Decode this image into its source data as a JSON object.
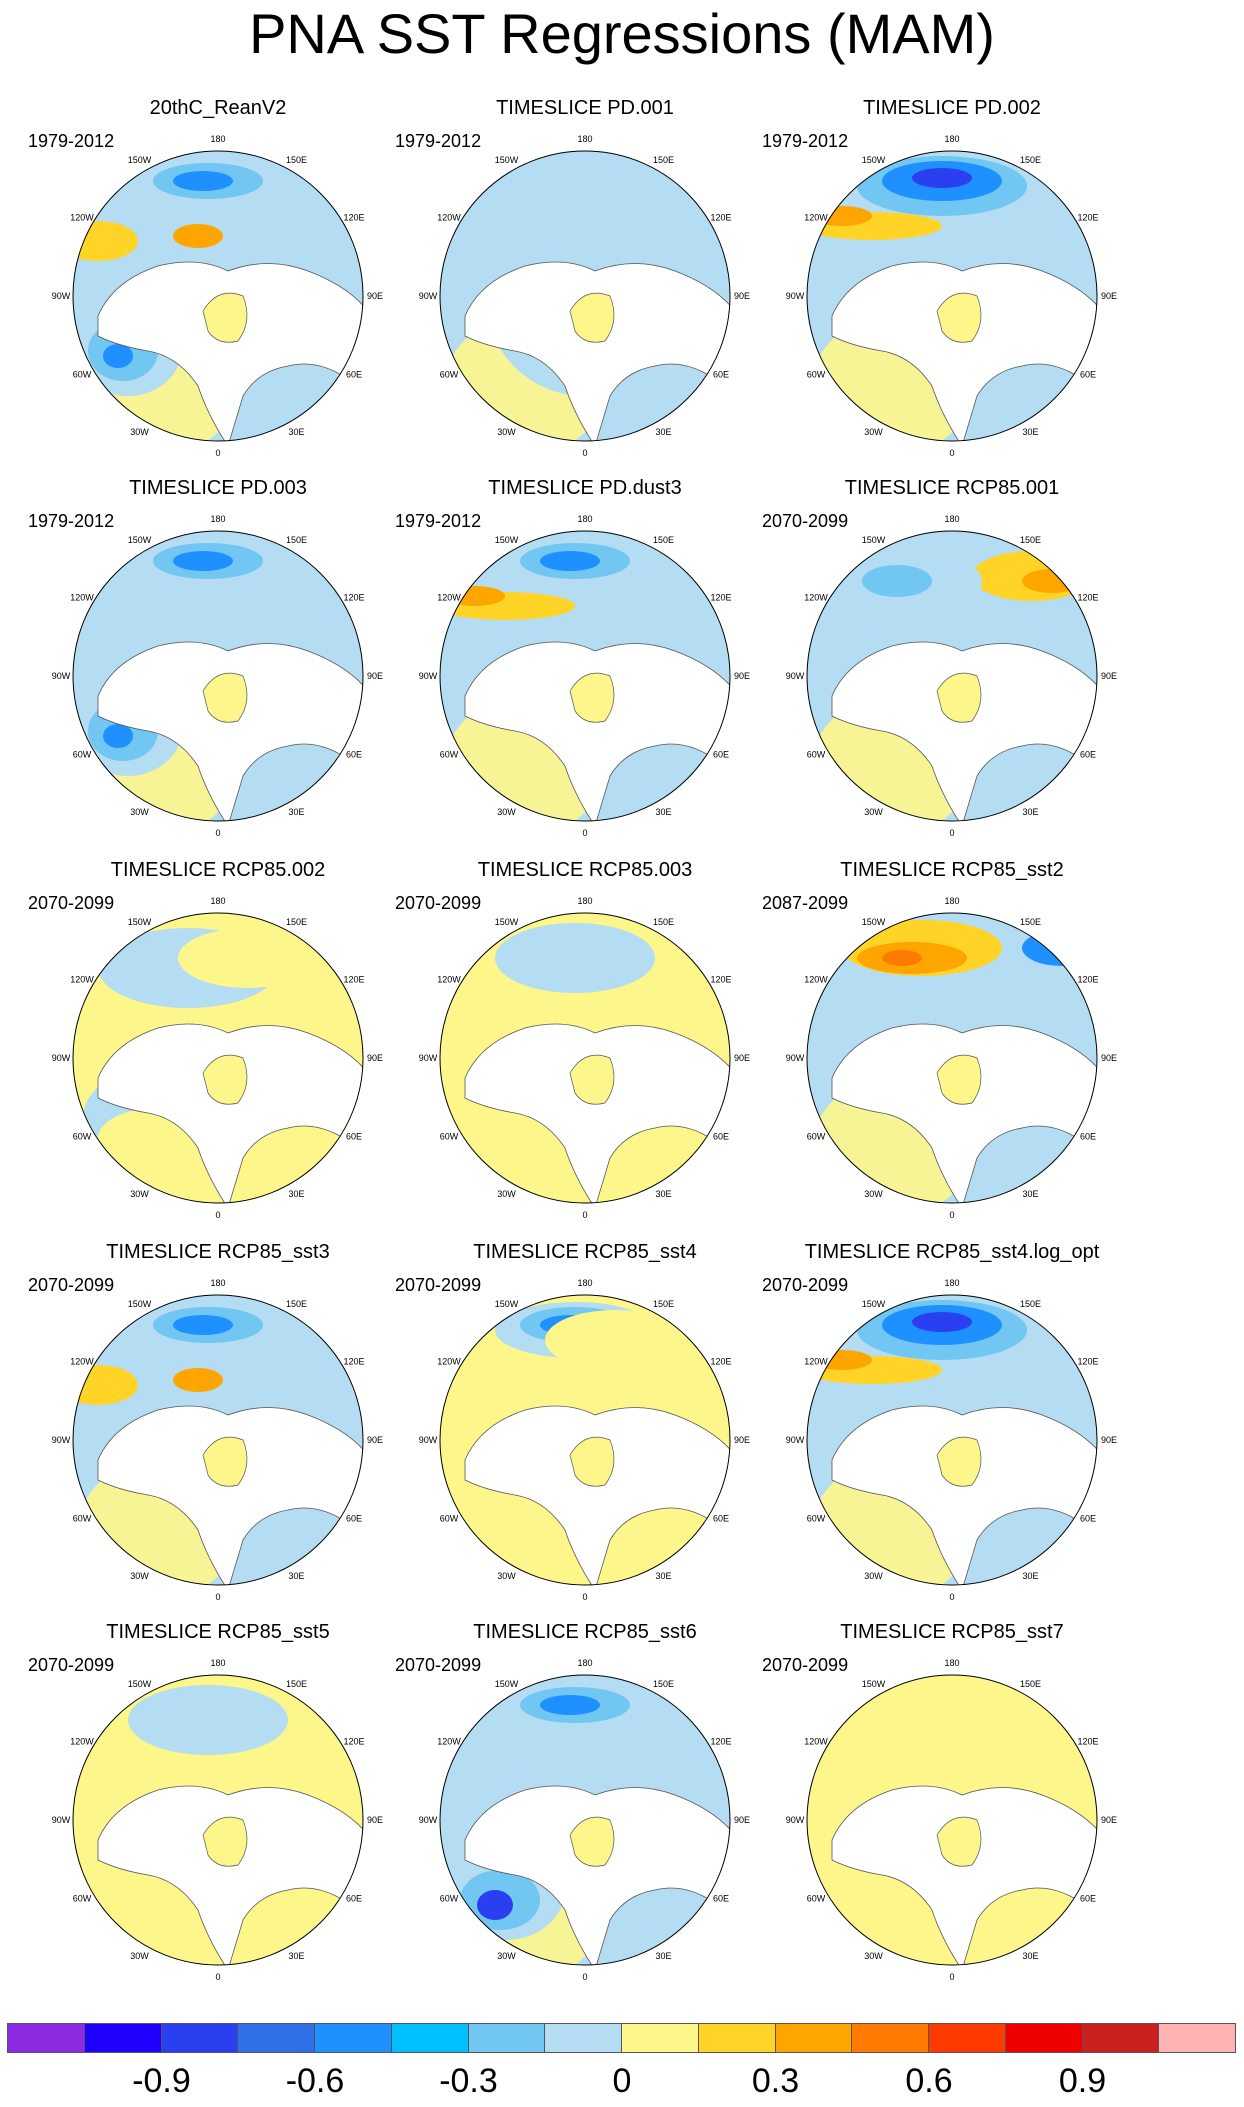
{
  "title": "PNA SST Regressions (MAM)",
  "longitude_labels": [
    "180",
    "150E",
    "120E",
    "90E",
    "60E",
    "30E",
    "0",
    "30W",
    "60W",
    "90W",
    "120W",
    "150W"
  ],
  "panels": [
    {
      "title": "20thC_ReanV2",
      "period": "1979-2012",
      "pattern": [
        "cool-pacific",
        "warm-west",
        "cool-atlantic"
      ]
    },
    {
      "title": "TIMESLICE PD.001",
      "period": "1979-2012",
      "pattern": [
        "cool-weak",
        "neutral"
      ]
    },
    {
      "title": "TIMESLICE PD.002",
      "period": "1979-2012",
      "pattern": [
        "cool-pacific-strong",
        "warm-band"
      ]
    },
    {
      "title": "TIMESLICE PD.003",
      "period": "1979-2012",
      "pattern": [
        "cool-pacific",
        "cool-atlantic"
      ]
    },
    {
      "title": "TIMESLICE PD.dust3",
      "period": "1979-2012",
      "pattern": [
        "cool-pacific",
        "warm-band"
      ]
    },
    {
      "title": "TIMESLICE RCP85.001",
      "period": "2070-2099",
      "pattern": [
        "warm-east",
        "cool-pacific-weak"
      ]
    },
    {
      "title": "TIMESLICE RCP85.002",
      "period": "2070-2099",
      "pattern": [
        "neutral-cool",
        "warm-weak"
      ]
    },
    {
      "title": "TIMESLICE RCP85.003",
      "period": "2070-2099",
      "pattern": [
        "warm-weak",
        "cool-weak"
      ]
    },
    {
      "title": "TIMESLICE RCP85_sst2",
      "period": "2087-2099",
      "pattern": [
        "warm-pacific-strong",
        "cool-east"
      ]
    },
    {
      "title": "TIMESLICE RCP85_sst3",
      "period": "2070-2099",
      "pattern": [
        "cool-pacific",
        "warm-west"
      ]
    },
    {
      "title": "TIMESLICE RCP85_sst4",
      "period": "2070-2099",
      "pattern": [
        "cool-pacific",
        "warm-weak"
      ]
    },
    {
      "title": "TIMESLICE RCP85_sst4.log_opt",
      "period": "2070-2099",
      "pattern": [
        "cool-pacific-strong",
        "warm-band"
      ]
    },
    {
      "title": "TIMESLICE RCP85_sst5",
      "period": "2070-2099",
      "pattern": [
        "warm-weak",
        "cool-weak"
      ]
    },
    {
      "title": "TIMESLICE RCP85_sst6",
      "period": "2070-2099",
      "pattern": [
        "cool-pacific",
        "cool-atlantic-strong"
      ]
    },
    {
      "title": "TIMESLICE RCP85_sst7",
      "period": "2070-2099",
      "pattern": [
        "warm-uniform"
      ]
    }
  ],
  "colorbar": {
    "colors": [
      "#8a2be2",
      "#1f00ff",
      "#2a40f0",
      "#2f6fe8",
      "#1e90ff",
      "#00bfff",
      "#72c6f2",
      "#b4dcf2",
      "#fdf68a",
      "#ffd427",
      "#ffa500",
      "#ff7a00",
      "#ff3a00",
      "#ee0000",
      "#cc2020",
      "#ffb3b3"
    ],
    "tick_labels": [
      "-0.9",
      "-0.6",
      "-0.3",
      "0",
      "0.3",
      "0.6",
      "0.9"
    ],
    "tick_values": [
      -0.9,
      -0.6,
      -0.3,
      0,
      0.3,
      0.6,
      0.9
    ]
  }
}
